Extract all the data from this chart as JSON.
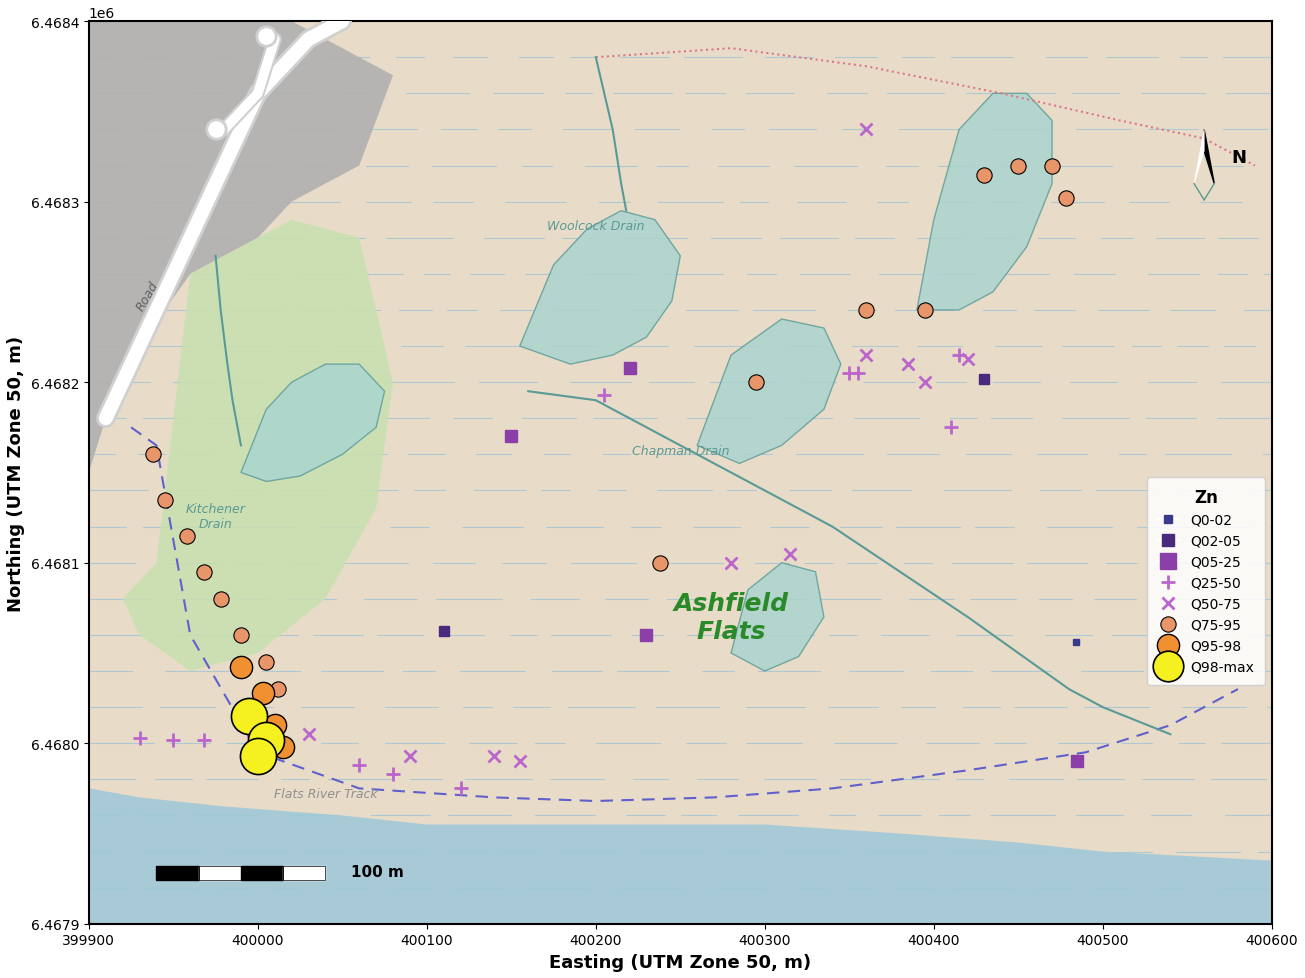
{
  "xlim": [
    399900,
    400600
  ],
  "ylim": [
    6467900,
    6468400
  ],
  "xlabel": "Easting (UTM Zone 50, m)",
  "ylabel": "Northing (UTM Zone 50, m)",
  "xticks": [
    399900,
    400000,
    400100,
    400200,
    400300,
    400400,
    400500,
    400600
  ],
  "yticks": [
    6467900,
    6468000,
    6468100,
    6468200,
    6468300,
    6468400
  ],
  "bg_color": "#e8dcc8",
  "water_color": "#a8d4d0",
  "green_area_color": "#c8e0b0",
  "blue_stripe_color": "#88bbdd",
  "urban_color": "#b0b0b0",
  "legend_title": "Zn",
  "categories": [
    "Q0-02",
    "Q02-05",
    "Q05-25",
    "Q25-50",
    "Q50-75",
    "Q75-95",
    "Q95-98",
    "Q98-max"
  ],
  "xlabel_fontsize": 13,
  "ylabel_fontsize": 13,
  "tick_fontsize": 10
}
